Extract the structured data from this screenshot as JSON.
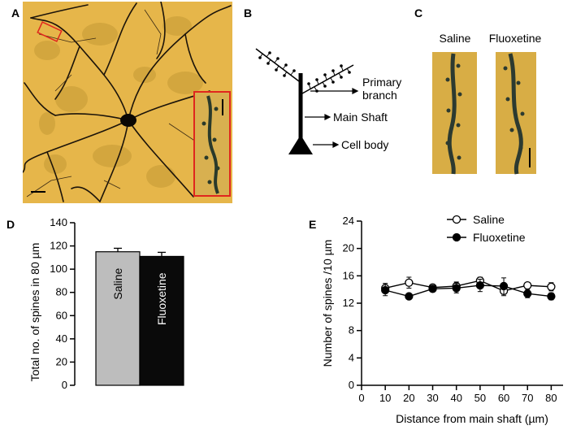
{
  "panels": {
    "a": {
      "letter": "A"
    },
    "b": {
      "letter": "B",
      "labels": {
        "primary_line1": "Primary",
        "primary_line2": "branch",
        "main_shaft": "Main Shaft",
        "cell_body": "Cell body"
      }
    },
    "c": {
      "letter": "C",
      "labels": {
        "saline": "Saline",
        "fluoxetine": "Fluoxetine"
      }
    },
    "d": {
      "letter": "D"
    },
    "e": {
      "letter": "E"
    }
  },
  "colors": {
    "micrograph_bg": "#e8b84a",
    "inset_border": "#e0261e",
    "saline_bar": "#bdbdbd",
    "fluoxetine_bar": "#0a0a0a"
  },
  "chart_data": [
    {
      "type": "bar",
      "categories": [
        "Saline",
        "Fluoxetine"
      ],
      "values": [
        115,
        111
      ],
      "errors": [
        3,
        3.5
      ],
      "ylabel": "Total no. of spines in 80 µm",
      "ylim": [
        0,
        140
      ],
      "yticks": [
        "0",
        "20",
        "40",
        "60",
        "80",
        "100",
        "120",
        "140"
      ],
      "colors": [
        "#bdbdbd",
        "#0a0a0a"
      ]
    },
    {
      "type": "line",
      "x": [
        10,
        20,
        30,
        40,
        50,
        60,
        70,
        80
      ],
      "xticks": [
        "0",
        "10",
        "20",
        "30",
        "40",
        "50",
        "60",
        "70",
        "80"
      ],
      "yticks": [
        "0",
        "4",
        "8",
        "12",
        "16",
        "20",
        "24"
      ],
      "xlim": [
        0,
        85
      ],
      "ylim": [
        0,
        24
      ],
      "xlabel": "Distance from main shaft (µm)",
      "ylabel": "Number of spines /10 µm",
      "legend": "top-right",
      "series": [
        {
          "name": "Saline",
          "marker": "open-circle",
          "values": [
            14.2,
            15.0,
            14.3,
            14.5,
            15.3,
            13.8,
            14.6,
            14.4
          ],
          "errors": [
            0.7,
            0.8,
            0.4,
            0.6,
            0.5,
            0.7,
            0.4,
            0.6
          ]
        },
        {
          "name": "Fluoxetine",
          "marker": "filled-circle",
          "values": [
            13.9,
            13.0,
            14.1,
            14.2,
            14.6,
            14.5,
            13.4,
            13.0
          ],
          "errors": [
            0.8,
            0.3,
            0.4,
            0.7,
            0.9,
            1.2,
            0.6,
            0.5
          ]
        }
      ]
    }
  ]
}
